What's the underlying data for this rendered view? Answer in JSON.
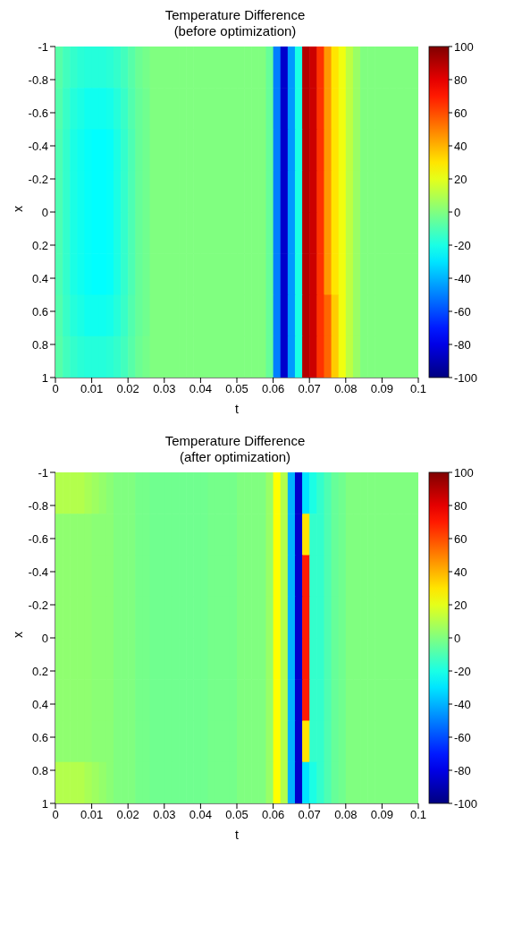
{
  "chart_data": [
    {
      "type": "heatmap",
      "title": "Temperature Difference\n(before optimization)",
      "xlabel": "t",
      "ylabel": "x",
      "x": [
        0.001,
        0.003,
        0.005,
        0.007,
        0.009,
        0.011,
        0.013,
        0.015,
        0.017,
        0.019,
        0.021,
        0.023,
        0.025,
        0.027,
        0.029,
        0.031,
        0.033,
        0.035,
        0.037,
        0.039,
        0.041,
        0.043,
        0.045,
        0.047,
        0.049,
        0.051,
        0.053,
        0.055,
        0.057,
        0.059,
        0.061,
        0.063,
        0.065,
        0.067,
        0.069,
        0.071,
        0.073,
        0.075,
        0.077,
        0.079,
        0.081,
        0.083,
        0.085,
        0.087,
        0.089,
        0.091,
        0.093,
        0.095,
        0.097,
        0.099
      ],
      "y": [
        -0.875,
        -0.625,
        -0.375,
        -0.125,
        0.125,
        0.375,
        0.625,
        0.875
      ],
      "cells": [
        [
          -8,
          -12,
          -15,
          -17,
          -18,
          -18,
          -18,
          -17,
          -15,
          -12,
          -8,
          -4,
          -2,
          0,
          0,
          0,
          0,
          0,
          0,
          0,
          0,
          0,
          0,
          0,
          0,
          0,
          0,
          0,
          0,
          -5,
          -50,
          -85,
          -45,
          -20,
          90,
          85,
          65,
          45,
          30,
          22,
          12,
          5,
          0,
          0,
          0,
          0,
          0,
          0,
          0,
          0
        ],
        [
          -9,
          -14,
          -18,
          -20,
          -22,
          -22,
          -22,
          -21,
          -18,
          -14,
          -9,
          -5,
          -3,
          0,
          0,
          0,
          0,
          0,
          0,
          0,
          0,
          0,
          0,
          0,
          0,
          0,
          0,
          0,
          0,
          -5,
          -50,
          -85,
          -45,
          -20,
          90,
          85,
          65,
          45,
          30,
          22,
          12,
          5,
          0,
          0,
          0,
          0,
          0,
          0,
          0,
          0
        ],
        [
          -10,
          -15,
          -20,
          -22,
          -24,
          -25,
          -25,
          -24,
          -20,
          -15,
          -10,
          -5,
          -3,
          0,
          0,
          0,
          0,
          0,
          0,
          0,
          0,
          0,
          0,
          0,
          0,
          0,
          0,
          0,
          0,
          -5,
          -50,
          -85,
          -45,
          -20,
          90,
          85,
          65,
          45,
          30,
          22,
          12,
          5,
          0,
          0,
          0,
          0,
          0,
          0,
          0,
          0
        ],
        [
          -10,
          -15,
          -20,
          -22,
          -24,
          -25,
          -25,
          -24,
          -20,
          -15,
          -10,
          -5,
          -3,
          0,
          0,
          0,
          0,
          0,
          0,
          0,
          0,
          0,
          0,
          0,
          0,
          0,
          0,
          0,
          0,
          -5,
          -50,
          -85,
          -45,
          -20,
          90,
          85,
          65,
          45,
          30,
          22,
          12,
          5,
          0,
          0,
          0,
          0,
          0,
          0,
          0,
          0
        ],
        [
          -10,
          -15,
          -20,
          -22,
          -24,
          -25,
          -25,
          -24,
          -20,
          -15,
          -10,
          -5,
          -3,
          0,
          0,
          0,
          0,
          0,
          0,
          0,
          0,
          0,
          0,
          0,
          0,
          0,
          0,
          0,
          0,
          -5,
          -50,
          -85,
          -45,
          -20,
          90,
          85,
          65,
          45,
          30,
          22,
          12,
          5,
          0,
          0,
          0,
          0,
          0,
          0,
          0,
          0
        ],
        [
          -10,
          -15,
          -20,
          -22,
          -24,
          -25,
          -25,
          -24,
          -20,
          -15,
          -10,
          -5,
          -3,
          0,
          0,
          0,
          0,
          0,
          0,
          0,
          0,
          0,
          0,
          0,
          0,
          0,
          0,
          0,
          0,
          -5,
          -50,
          -85,
          -45,
          -20,
          90,
          85,
          65,
          45,
          30,
          22,
          12,
          5,
          0,
          0,
          0,
          0,
          0,
          0,
          0,
          0
        ],
        [
          -9,
          -14,
          -18,
          -20,
          -22,
          -22,
          -22,
          -21,
          -18,
          -14,
          -9,
          -5,
          -3,
          0,
          0,
          0,
          0,
          0,
          0,
          0,
          0,
          0,
          0,
          0,
          0,
          0,
          0,
          0,
          0,
          -5,
          -50,
          -85,
          -45,
          -20,
          90,
          85,
          65,
          55,
          35,
          22,
          12,
          5,
          0,
          0,
          0,
          0,
          0,
          0,
          0,
          0
        ],
        [
          -8,
          -12,
          -15,
          -17,
          -18,
          -18,
          -18,
          -17,
          -15,
          -12,
          -8,
          -4,
          -2,
          0,
          0,
          0,
          0,
          0,
          0,
          0,
          0,
          0,
          0,
          0,
          0,
          0,
          0,
          0,
          0,
          -5,
          -50,
          -85,
          -45,
          -20,
          90,
          85,
          65,
          55,
          35,
          22,
          12,
          5,
          0,
          0,
          0,
          0,
          0,
          0,
          0,
          0
        ]
      ],
      "xlim": [
        0,
        0.1
      ],
      "xticks": [
        0,
        0.01,
        0.02,
        0.03,
        0.04,
        0.05,
        0.06,
        0.07,
        0.08,
        0.09,
        0.1
      ],
      "ylim": [
        1,
        -1
      ],
      "yticks": [
        -1,
        -0.8,
        -0.6,
        -0.4,
        -0.2,
        0,
        0.2,
        0.4,
        0.6,
        0.8,
        1
      ],
      "clim": [
        -100,
        100
      ],
      "cticks": [
        -100,
        -80,
        -60,
        -40,
        -20,
        0,
        20,
        40,
        60,
        80,
        100
      ]
    },
    {
      "type": "heatmap",
      "title": "Temperature Difference\n(after optimization)",
      "xlabel": "t",
      "ylabel": "x",
      "x": [
        0.001,
        0.003,
        0.005,
        0.007,
        0.009,
        0.011,
        0.013,
        0.015,
        0.017,
        0.019,
        0.021,
        0.023,
        0.025,
        0.027,
        0.029,
        0.031,
        0.033,
        0.035,
        0.037,
        0.039,
        0.041,
        0.043,
        0.045,
        0.047,
        0.049,
        0.051,
        0.053,
        0.055,
        0.057,
        0.059,
        0.061,
        0.063,
        0.065,
        0.067,
        0.069,
        0.071,
        0.073,
        0.075,
        0.077,
        0.079,
        0.081,
        0.083,
        0.085,
        0.087,
        0.089,
        0.091,
        0.093,
        0.095,
        0.097,
        0.099
      ],
      "y": [
        -0.875,
        -0.625,
        -0.375,
        -0.125,
        0.125,
        0.375,
        0.625,
        0.875
      ],
      "cells": [
        [
          10,
          10,
          10,
          10,
          8,
          6,
          4,
          2,
          0,
          0,
          0,
          -2,
          -2,
          -3,
          -3,
          -3,
          -3,
          -3,
          -3,
          -3,
          -3,
          -2,
          -2,
          -2,
          -2,
          0,
          0,
          0,
          0,
          5,
          25,
          10,
          -40,
          -85,
          -30,
          -20,
          -15,
          -10,
          -5,
          -3,
          0,
          0,
          0,
          0,
          0,
          0,
          0,
          0,
          0,
          0
        ],
        [
          3,
          3,
          3,
          3,
          3,
          2,
          2,
          2,
          0,
          0,
          0,
          -2,
          -2,
          -3,
          -3,
          -3,
          -3,
          -3,
          -3,
          -3,
          -3,
          -2,
          -2,
          -2,
          -2,
          0,
          0,
          0,
          0,
          5,
          25,
          10,
          -40,
          -85,
          30,
          -15,
          -15,
          -10,
          -5,
          -3,
          0,
          0,
          0,
          0,
          0,
          0,
          0,
          0,
          0,
          0
        ],
        [
          3,
          3,
          3,
          3,
          3,
          2,
          2,
          2,
          0,
          0,
          0,
          -2,
          -2,
          -3,
          -3,
          -3,
          -3,
          -3,
          -3,
          -3,
          -3,
          -2,
          -2,
          -2,
          -2,
          0,
          0,
          0,
          0,
          5,
          25,
          10,
          -40,
          -85,
          70,
          -15,
          -15,
          -10,
          -5,
          -3,
          0,
          0,
          0,
          0,
          0,
          0,
          0,
          0,
          0,
          0
        ],
        [
          3,
          3,
          3,
          3,
          3,
          2,
          2,
          2,
          0,
          0,
          0,
          -2,
          -2,
          -3,
          -3,
          -3,
          -3,
          -3,
          -3,
          -3,
          -3,
          -2,
          -2,
          -2,
          -2,
          0,
          0,
          0,
          0,
          5,
          25,
          10,
          -40,
          -85,
          70,
          -15,
          -15,
          -10,
          -5,
          -3,
          0,
          0,
          0,
          0,
          0,
          0,
          0,
          0,
          0,
          0
        ],
        [
          3,
          3,
          3,
          3,
          3,
          2,
          2,
          2,
          0,
          0,
          0,
          -2,
          -2,
          -3,
          -3,
          -3,
          -3,
          -3,
          -3,
          -3,
          -3,
          -2,
          -2,
          -2,
          -2,
          0,
          0,
          0,
          0,
          5,
          25,
          10,
          -40,
          -85,
          70,
          -15,
          -15,
          -10,
          -5,
          -3,
          0,
          0,
          0,
          0,
          0,
          0,
          0,
          0,
          0,
          0
        ],
        [
          3,
          3,
          3,
          3,
          3,
          2,
          2,
          2,
          0,
          0,
          0,
          -2,
          -2,
          -3,
          -3,
          -3,
          -3,
          -3,
          -3,
          -3,
          -3,
          -2,
          -2,
          -2,
          -2,
          0,
          0,
          0,
          0,
          5,
          25,
          10,
          -40,
          -85,
          70,
          -15,
          -15,
          -10,
          -5,
          -3,
          0,
          0,
          0,
          0,
          0,
          0,
          0,
          0,
          0,
          0
        ],
        [
          3,
          3,
          3,
          3,
          3,
          2,
          2,
          2,
          0,
          0,
          0,
          -2,
          -2,
          -3,
          -3,
          -3,
          -3,
          -3,
          -3,
          -3,
          -3,
          -2,
          -2,
          -2,
          -2,
          0,
          0,
          0,
          0,
          5,
          25,
          10,
          -40,
          -85,
          30,
          -15,
          -15,
          -10,
          -5,
          -3,
          0,
          0,
          0,
          0,
          0,
          0,
          0,
          0,
          0,
          0
        ],
        [
          10,
          10,
          10,
          10,
          8,
          6,
          4,
          2,
          0,
          0,
          0,
          -2,
          -2,
          -3,
          -3,
          -3,
          -3,
          -3,
          -3,
          -3,
          -3,
          -2,
          -2,
          -2,
          -2,
          0,
          0,
          0,
          0,
          5,
          25,
          10,
          -40,
          -85,
          -30,
          -20,
          -15,
          -10,
          -5,
          -3,
          0,
          0,
          0,
          0,
          0,
          0,
          0,
          0,
          0,
          0
        ]
      ],
      "xlim": [
        0,
        0.1
      ],
      "xticks": [
        0,
        0.01,
        0.02,
        0.03,
        0.04,
        0.05,
        0.06,
        0.07,
        0.08,
        0.09,
        0.1
      ],
      "ylim": [
        1,
        -1
      ],
      "yticks": [
        -1,
        -0.8,
        -0.6,
        -0.4,
        -0.2,
        0,
        0.2,
        0.4,
        0.6,
        0.8,
        1
      ],
      "clim": [
        -100,
        100
      ],
      "cticks": [
        -100,
        -80,
        -60,
        -40,
        -20,
        0,
        20,
        40,
        60,
        80,
        100
      ]
    }
  ]
}
